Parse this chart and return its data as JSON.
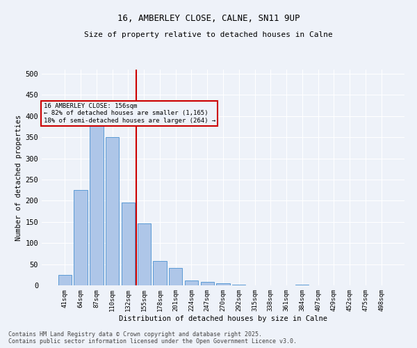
{
  "title_line1": "16, AMBERLEY CLOSE, CALNE, SN11 9UP",
  "title_line2": "Size of property relative to detached houses in Calne",
  "xlabel": "Distribution of detached houses by size in Calne",
  "ylabel": "Number of detached properties",
  "bar_labels": [
    "41sqm",
    "64sqm",
    "87sqm",
    "110sqm",
    "132sqm",
    "155sqm",
    "178sqm",
    "201sqm",
    "224sqm",
    "247sqm",
    "270sqm",
    "292sqm",
    "315sqm",
    "338sqm",
    "361sqm",
    "384sqm",
    "407sqm",
    "429sqm",
    "452sqm",
    "475sqm",
    "498sqm"
  ],
  "bar_values": [
    25,
    225,
    380,
    350,
    195,
    147,
    57,
    41,
    12,
    8,
    5,
    2,
    0,
    0,
    0,
    1,
    0,
    0,
    0,
    0,
    0
  ],
  "bar_color": "#aec6e8",
  "bar_edge_color": "#5b9bd5",
  "vline_color": "#cc0000",
  "annotation_text": "16 AMBERLEY CLOSE: 156sqm\n← 82% of detached houses are smaller (1,165)\n18% of semi-detached houses are larger (264) →",
  "annotation_box_color": "#cc0000",
  "annotation_text_color": "#000000",
  "ylim": [
    0,
    510
  ],
  "yticks": [
    0,
    50,
    100,
    150,
    200,
    250,
    300,
    350,
    400,
    450,
    500
  ],
  "footer_text": "Contains HM Land Registry data © Crown copyright and database right 2025.\nContains public sector information licensed under the Open Government Licence v3.0.",
  "background_color": "#eef2f9",
  "grid_color": "#ffffff"
}
